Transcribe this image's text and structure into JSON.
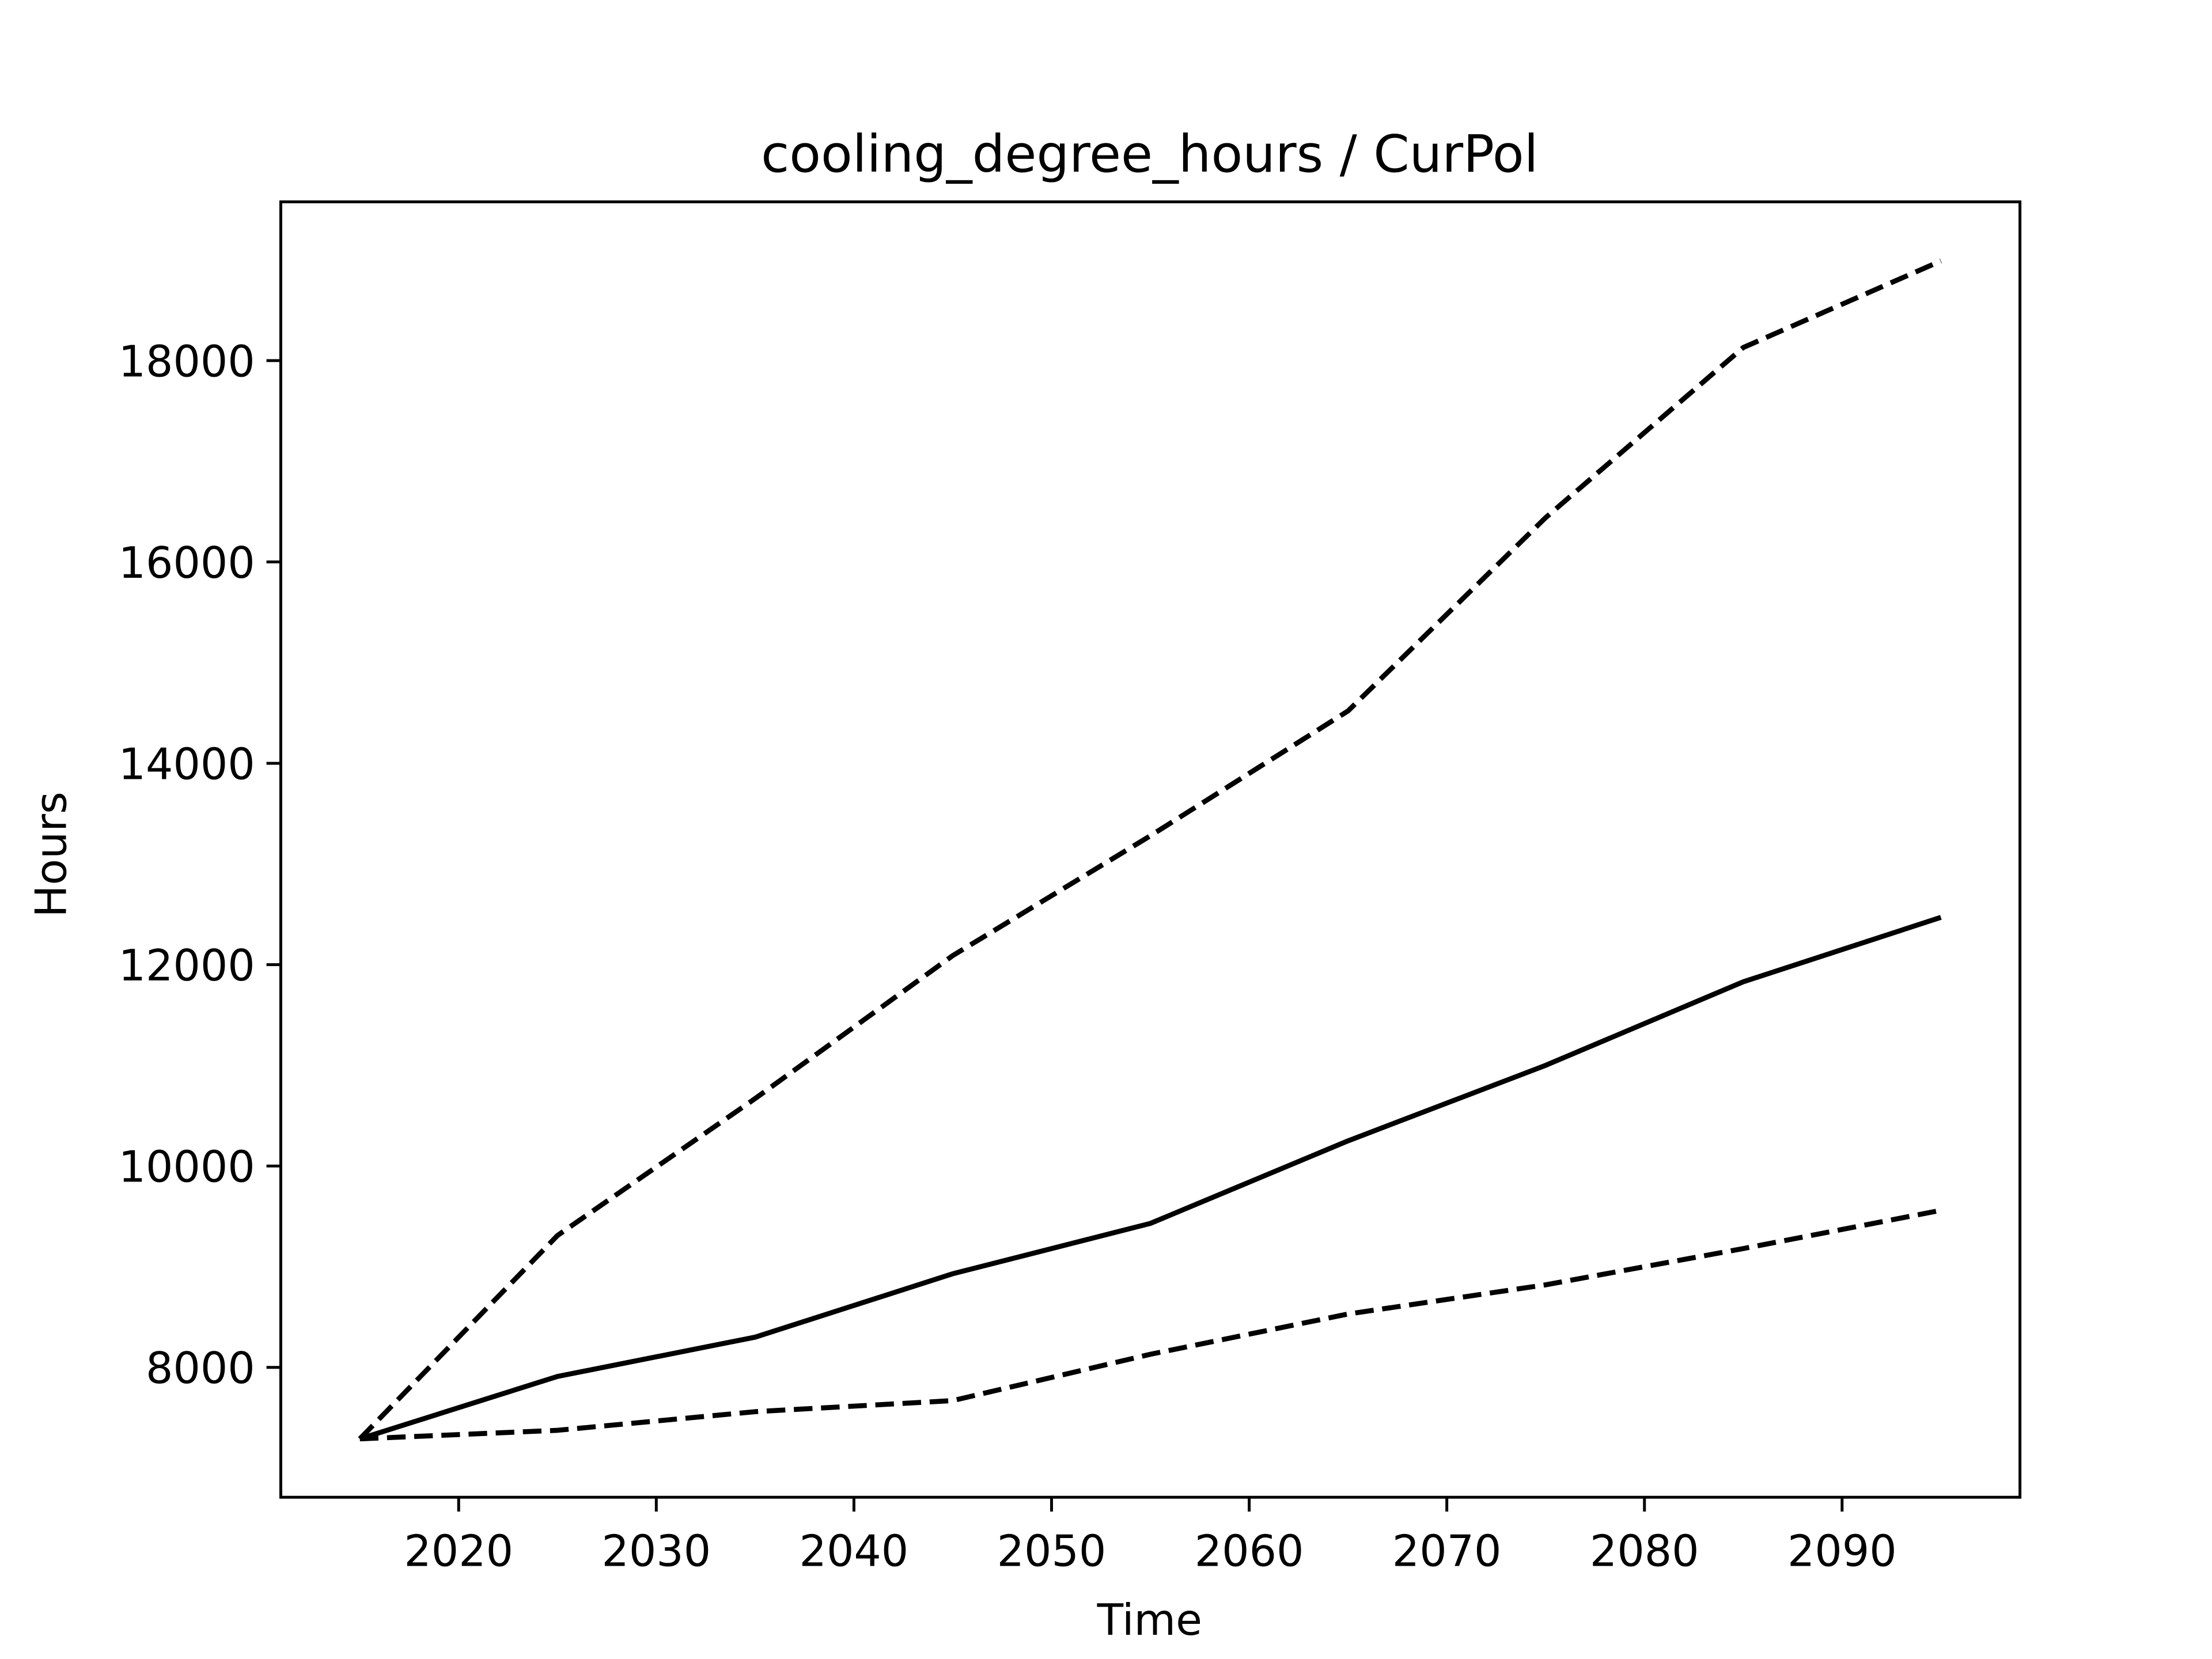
{
  "chart_data": {
    "type": "line",
    "title": "cooling_degree_hours / CurPol",
    "x_label": "Time",
    "y_label": "Hours",
    "x": [
      2015,
      2025,
      2035,
      2045,
      2055,
      2065,
      2075,
      2085,
      2095
    ],
    "series": [
      {
        "color": "#000000",
        "style": "solid",
        "values": [
          7290,
          7910,
          8300,
          8930,
          9430,
          10250,
          11000,
          11830,
          12470
        ]
      },
      {
        "color": "#000000",
        "style": "dashed",
        "values": [
          7290,
          9310,
          10670,
          12090,
          13280,
          14520,
          16440,
          18130,
          18990
        ]
      },
      {
        "color": "#000000",
        "style": "dashed",
        "values": [
          7290,
          7375,
          7560,
          7670,
          8130,
          8530,
          8820,
          9180,
          9560
        ]
      }
    ],
    "xlim": [
      2011,
      2099
    ],
    "ylim": [
      6710,
      19577
    ],
    "xticks": [
      2020,
      2030,
      2040,
      2050,
      2060,
      2070,
      2080,
      2090
    ],
    "yticks": [
      8000,
      10000,
      12000,
      14000,
      16000,
      18000
    ],
    "grid": false
  }
}
